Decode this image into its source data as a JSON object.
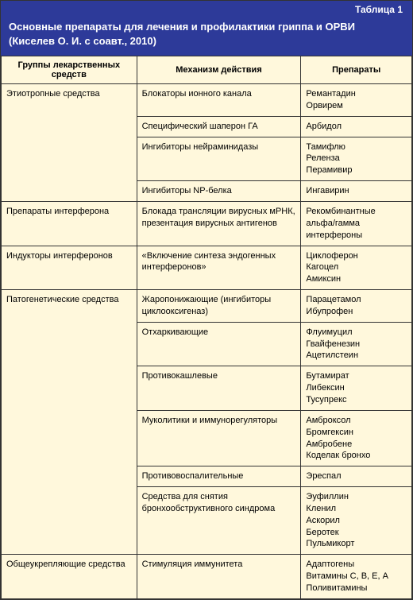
{
  "table_label": "Таблица 1",
  "title_line1": "Основные препараты для лечения и профилактики гриппа и ОРВИ",
  "title_line2": "(Киселев О. И. с соавт., 2010)",
  "headers": {
    "col1": "Группы лекарственных средств",
    "col2": "Механизм действия",
    "col3": "Препараты"
  },
  "colors": {
    "header_bg": "#2d3a99",
    "header_text": "#ffffff",
    "cell_bg": "#fff8dc",
    "border": "#333333"
  },
  "rows": [
    {
      "group": "Этиотропные средства",
      "mech": "Блокаторы ионного канала",
      "prep": "Ремантадин\nОрвирем"
    },
    {
      "group": "",
      "mech": "Специфический шаперон ГА",
      "prep": "Арбидол"
    },
    {
      "group": "",
      "mech": "Ингибиторы нейраминидазы",
      "prep": "Тамифлю\nРеленза\nПерамивир"
    },
    {
      "group": "",
      "mech": "Ингибиторы NP-белка",
      "prep": "Ингавирин",
      "group_end": true
    },
    {
      "group": "Препараты интерферона",
      "mech": "Блокада трансляции вирусных мРНК, презентация вирусных антигенов",
      "prep": "Рекомбинантные альфа/гамма интерфероны",
      "group_end": true
    },
    {
      "group": "Индукторы интерферонов",
      "mech": "«Включение синтеза эндогенных интерферонов»",
      "prep": "Циклоферон\nКагоцел\nАмиксин",
      "group_end": true
    },
    {
      "group": "Патогенетические средства",
      "mech": "Жаропонижающие (ингибиторы циклооксигеназ)",
      "prep": "Парацетамол\nИбупрофен"
    },
    {
      "group": "",
      "mech": "Отхаркивающие",
      "prep": "Флуимуцил\nГвайфенезин\nАцетилстеин"
    },
    {
      "group": "",
      "mech": "Противокашлевые",
      "prep": "Бутамират\nЛибексин\nТусупрекс"
    },
    {
      "group": "",
      "mech": "Муколитики и иммунорегуляторы",
      "prep": "Амброксол\nБромгексин\nАмбробене\nКоделак бронхо"
    },
    {
      "group": "",
      "mech": "Противовоспалительные",
      "prep": "Эреспал"
    },
    {
      "group": "",
      "mech": "Средства для снятия бронхообструктивного синдрома",
      "prep": "Эуфиллин\nКленил\nАскорил\nБеротек\nПульмикорт",
      "group_end": true
    },
    {
      "group": "Общеукрепляющие средства",
      "mech": "Стимуляция иммунитета",
      "prep": "Адаптогены\nВитамины С, В, Е, А\nПоливитамины",
      "group_end": true
    }
  ]
}
